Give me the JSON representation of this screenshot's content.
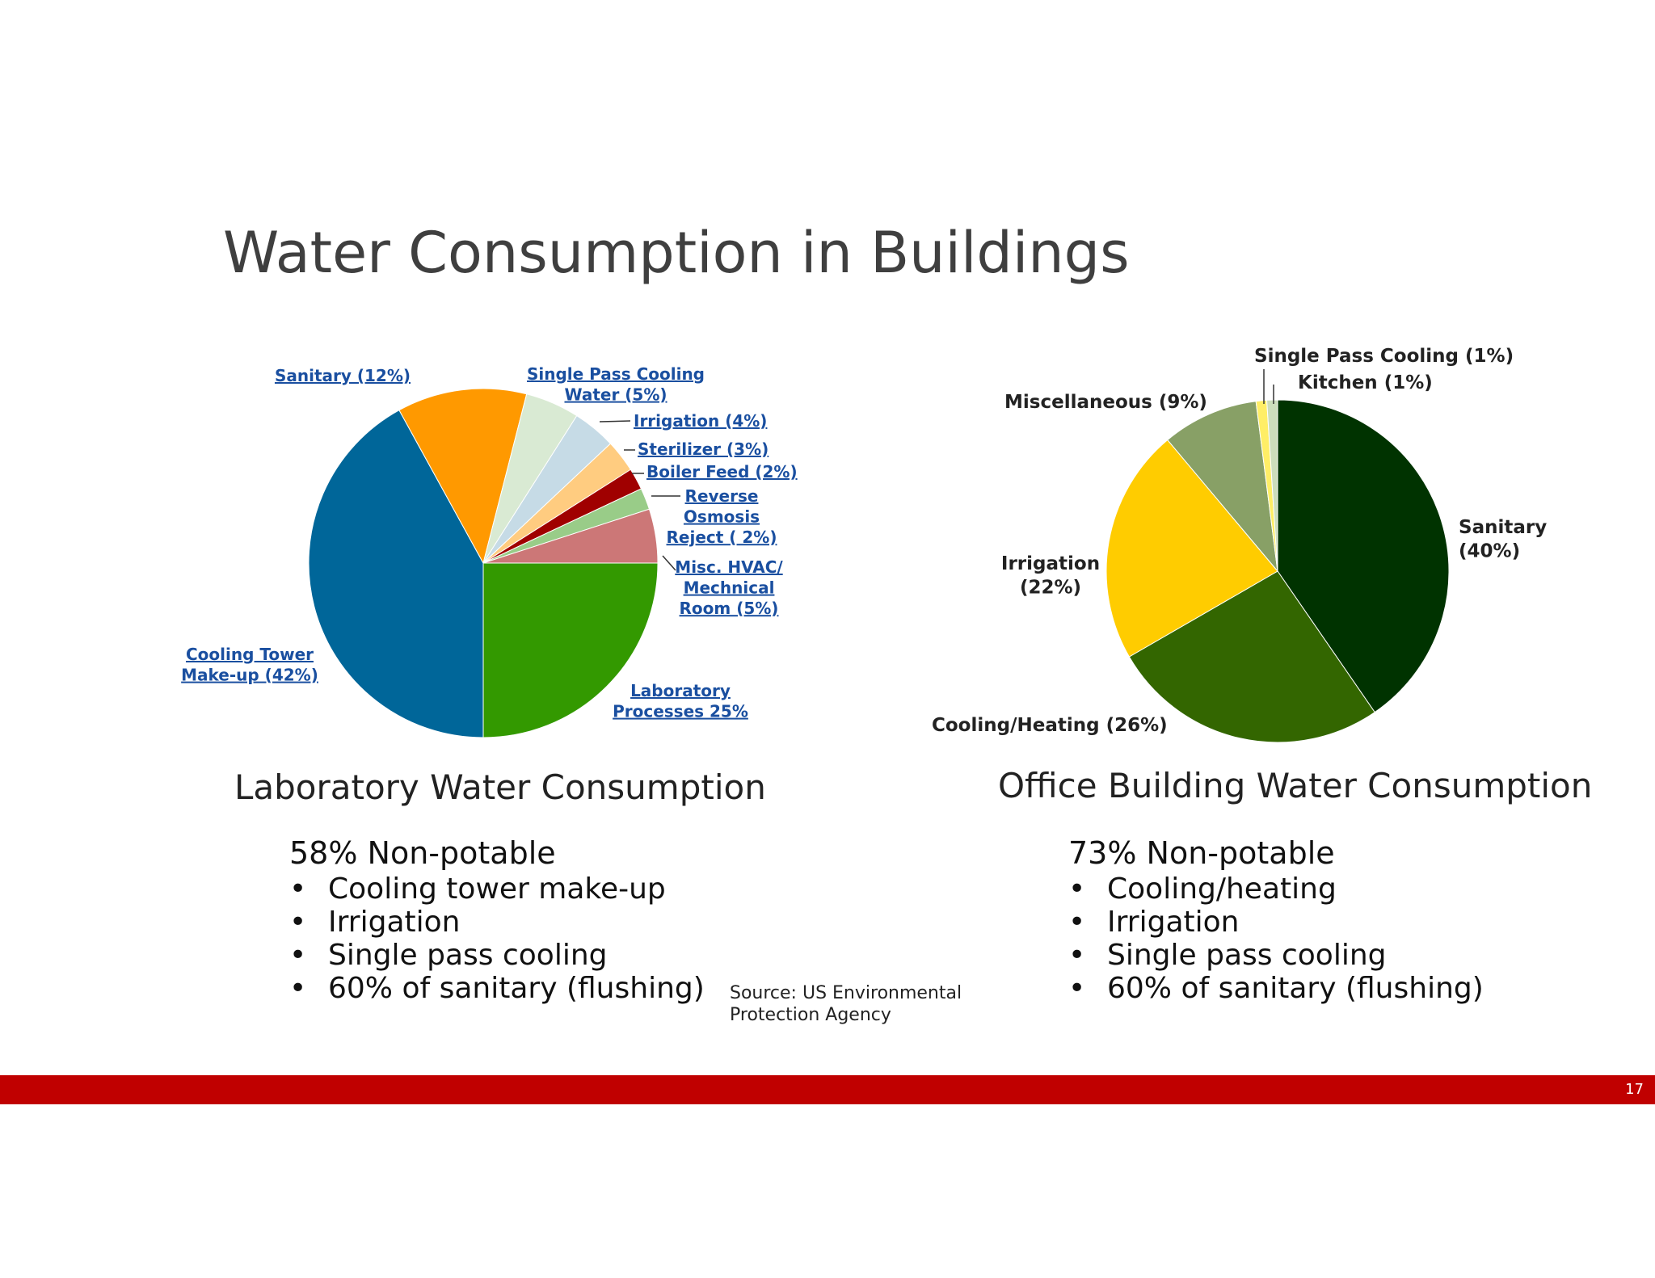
{
  "slide": {
    "title": "Water Consumption in Buildings",
    "source": "Source: US Environmental Protection Agency",
    "page_number": "17",
    "accent_color": "#c00000"
  },
  "lab": {
    "caption": "Laboratory Water Consumption",
    "summary": "58% Non-potable",
    "bullets": [
      "Cooling tower make-up",
      "Irrigation",
      "Single pass cooling",
      "60% of sanitary (flushing)"
    ]
  },
  "office": {
    "caption": "Office Building Water Consumption",
    "summary": "73% Non-potable",
    "bullets": [
      "Cooling/heating",
      "Irrigation",
      "Single pass cooling",
      "60% of sanitary (flushing)"
    ]
  },
  "chart_data": [
    {
      "type": "pie",
      "slices": [
        {
          "label_lines": [
            "Laboratory",
            "Processes 25%"
          ],
          "value": 25,
          "color": "#339900"
        },
        {
          "label_lines": [
            "Cooling Tower",
            "Make-up (42%)"
          ],
          "value": 42,
          "color": "#006699"
        },
        {
          "label_lines": [
            "Sanitary (12%)"
          ],
          "value": 12,
          "color": "#ff9900"
        },
        {
          "label_lines": [
            "Single Pass Cooling",
            "Water (5%)"
          ],
          "value": 5,
          "color": "#d9ead3"
        },
        {
          "label_lines": [
            "Irrigation (4%)"
          ],
          "value": 4,
          "color": "#c6dbe6"
        },
        {
          "label_lines": [
            "Sterilizer (3%)"
          ],
          "value": 3,
          "color": "#ffcc80"
        },
        {
          "label_lines": [
            "Boiler Feed (2%)"
          ],
          "value": 2,
          "color": "#a00000"
        },
        {
          "label_lines": [
            "Reverse",
            "Osmosis",
            "Reject ( 2%)"
          ],
          "value": 2,
          "color": "#99cc88"
        },
        {
          "label_lines": [
            "Misc. HVAC/",
            "Mechnical",
            "Room (5%)"
          ],
          "value": 5,
          "color": "#cc7777"
        }
      ],
      "label_color": "#1a4fa0"
    },
    {
      "type": "pie",
      "slices": [
        {
          "label_lines": [
            "Sanitary",
            "(40%)"
          ],
          "value": 40,
          "color": "#003300"
        },
        {
          "label_lines": [
            "Cooling/Heating (26%)"
          ],
          "value": 26,
          "color": "#336600"
        },
        {
          "label_lines": [
            "Irrigation",
            "(22%)"
          ],
          "value": 22,
          "color": "#ffcc00"
        },
        {
          "label_lines": [
            "Miscellaneous (9%)"
          ],
          "value": 9,
          "color": "#88a066"
        },
        {
          "label_lines": [
            "Single Pass Cooling (1%)"
          ],
          "value": 1,
          "color": "#ffee66"
        },
        {
          "label_lines": [
            "Kitchen (1%)"
          ],
          "value": 1,
          "color": "#ccddbb"
        }
      ],
      "label_color": "#222222"
    }
  ]
}
